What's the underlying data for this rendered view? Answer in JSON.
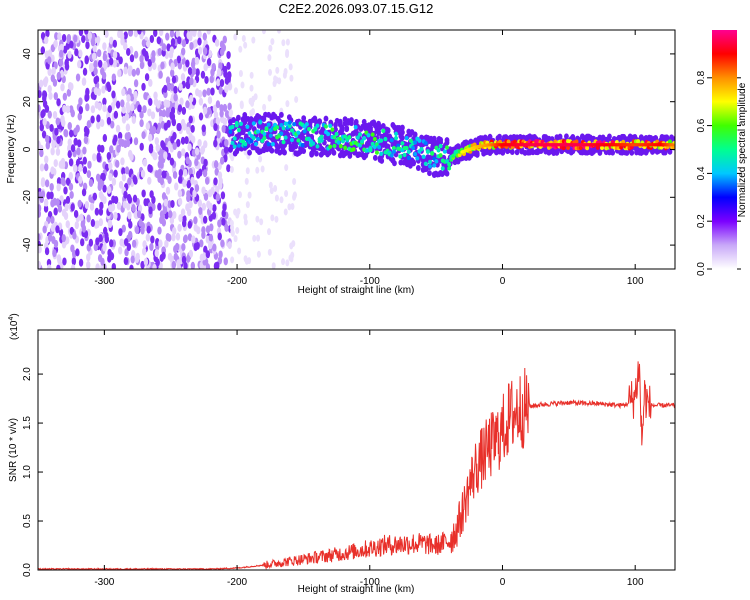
{
  "figure_title": "C2E2.2026.093.07.15.G12",
  "colors": {
    "axis": "#000000",
    "snr_line": "#e8302a",
    "spec_background": "#ffffff",
    "spec_noise": "#7b2cf0"
  },
  "chart_data": [
    {
      "type": "heatmap",
      "title": "",
      "xlabel": "Height of straight line (km)",
      "ylabel": "Frequency (Hz)",
      "xlim": [
        -350,
        130
      ],
      "ylim": [
        -50,
        50
      ],
      "xticks": [
        -300,
        -200,
        -100,
        0,
        100
      ],
      "xtick_labels": [
        "-300",
        "-200",
        "-100",
        "0",
        "100"
      ],
      "yticks": [
        -40,
        -20,
        0,
        20,
        40
      ],
      "ytick_labels": [
        "-40",
        "-20",
        "0",
        "20",
        "40"
      ],
      "noise_region": {
        "x_range": [
          -350,
          -205
        ],
        "description": "scattered low amplitude (0.2-0.3)"
      },
      "signal_ridge": {
        "x": [
          -205,
          -180,
          -150,
          -120,
          -100,
          -80,
          -60,
          -50,
          -40,
          -30,
          -20,
          -10,
          0,
          20,
          40,
          60,
          80,
          100,
          120,
          130
        ],
        "frequency": [
          6,
          7,
          6,
          5,
          4,
          2,
          -1,
          -3,
          -3,
          -1,
          1,
          2,
          2,
          2,
          2,
          2,
          2,
          2,
          2,
          2
        ],
        "amplitude": [
          0.45,
          0.5,
          0.5,
          0.55,
          0.55,
          0.5,
          0.45,
          0.5,
          0.6,
          0.7,
          0.75,
          0.8,
          0.9,
          0.95,
          0.95,
          0.95,
          0.9,
          0.85,
          0.9,
          0.8
        ]
      },
      "colorbar": {
        "label": "Normalized spectral amplitude",
        "range": [
          0,
          1
        ],
        "ticks": [
          0.0,
          0.2,
          0.4,
          0.6,
          0.8
        ],
        "tick_labels": [
          "0.0",
          "0.2",
          "0.4",
          "0.6",
          "0.8"
        ],
        "colormap": [
          "#ffffff",
          "#c8a8f8",
          "#7b00ff",
          "#0000ff",
          "#00c8ff",
          "#00ff90",
          "#40ff00",
          "#ffff00",
          "#ff9000",
          "#ff0000",
          "#ff0090"
        ]
      }
    },
    {
      "type": "line",
      "title": "",
      "xlabel": "Height of straight line (km)",
      "ylabel": "SNR (10 * v/v)",
      "scale_label": "(x10",
      "scale_exponent": "4",
      "scale_close": ")",
      "xlim": [
        -350,
        130
      ],
      "ylim": [
        0,
        2.45
      ],
      "xticks": [
        -300,
        -200,
        -100,
        0,
        100
      ],
      "xtick_labels": [
        "-300",
        "-200",
        "-100",
        "0",
        "100"
      ],
      "yticks": [
        0,
        0.5,
        1.0,
        1.5,
        2.0
      ],
      "ytick_labels": [
        "0.0",
        "0.5",
        "1.0",
        "1.5",
        "2.0"
      ],
      "series": [
        {
          "name": "SNR",
          "x": [
            -350,
            -300,
            -250,
            -220,
            -200,
            -180,
            -160,
            -140,
            -120,
            -100,
            -90,
            -80,
            -70,
            -60,
            -50,
            -40,
            -35,
            -30,
            -25,
            -20,
            -15,
            -10,
            -5,
            0,
            5,
            10,
            20,
            30,
            40,
            50,
            60,
            70,
            80,
            90,
            95,
            100,
            103,
            105,
            107,
            110,
            120,
            130
          ],
          "y": [
            0.01,
            0.01,
            0.01,
            0.01,
            0.02,
            0.05,
            0.09,
            0.13,
            0.17,
            0.22,
            0.25,
            0.26,
            0.27,
            0.27,
            0.25,
            0.3,
            0.4,
            0.6,
            0.85,
            1.05,
            1.15,
            1.25,
            1.32,
            1.42,
            1.55,
            1.62,
            1.67,
            1.69,
            1.7,
            1.71,
            1.7,
            1.7,
            1.69,
            1.68,
            1.7,
            1.78,
            2.1,
            1.3,
            1.8,
            1.68,
            1.68,
            1.68
          ]
        }
      ]
    }
  ]
}
